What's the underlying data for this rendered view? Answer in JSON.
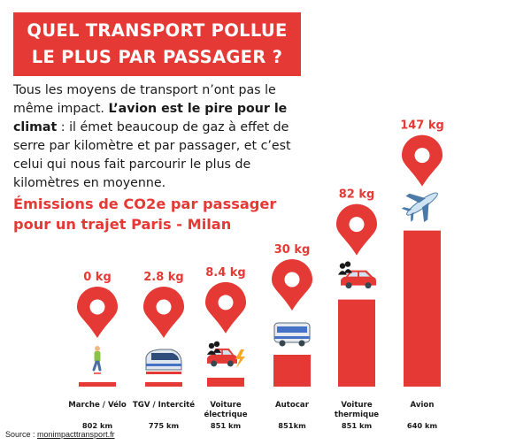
{
  "title": {
    "line1": "QUEL TRANSPORT POLLUE",
    "line2": "LE PLUS PAR PASSAGER ?"
  },
  "intro": {
    "part1": "Tous les moyens de transport n’ont pas le même impact. ",
    "bold": "L’avion est le pire pour le climat",
    "part2": " : il émet beaucoup de gaz à effet de serre par kilomètre et par passager, et c’est celui qui nous fait parcourir le plus de kilomètres en moyenne."
  },
  "subtitle": "Émissions de CO2e par passager pour un trajet Paris - Milan",
  "source": {
    "label": "Source : ",
    "link": "monimpacttransport.fr"
  },
  "colors": {
    "accent": "#e53935",
    "text": "#1a1a1a"
  },
  "chart_data": {
    "type": "bar",
    "title": "Émissions de CO2e par passager pour un trajet Paris - Milan",
    "unit": "kg",
    "ylim": [
      0,
      150
    ],
    "grid": false,
    "categories": [
      {
        "name": "Marche / Vélo",
        "lines": [
          "Marche / Vélo"
        ],
        "value": 0,
        "label": "0 kg",
        "distance": "802 km",
        "icon": "walker-icon"
      },
      {
        "name": "TGV / Intercité",
        "lines": [
          "TGV / Intercité"
        ],
        "value": 2.8,
        "label": "2.8 kg",
        "distance": "775 km",
        "icon": "train-icon"
      },
      {
        "name": "Voiture électrique",
        "lines": [
          "Voiture",
          "électrique"
        ],
        "value": 8.4,
        "label": "8.4 kg",
        "distance": "851 km",
        "icon": "electric-car-icon"
      },
      {
        "name": "Autocar",
        "lines": [
          "Autocar"
        ],
        "value": 30,
        "label": "30 kg",
        "distance": "851km",
        "icon": "bus-icon"
      },
      {
        "name": "Voiture thermique",
        "lines": [
          "Voiture",
          "thermique"
        ],
        "value": 82,
        "label": "82 kg",
        "distance": "851 km",
        "icon": "car-icon"
      },
      {
        "name": "Avion",
        "lines": [
          "Avion"
        ],
        "value": 147,
        "label": "147 kg",
        "distance": "640 km",
        "icon": "plane-icon"
      }
    ]
  }
}
